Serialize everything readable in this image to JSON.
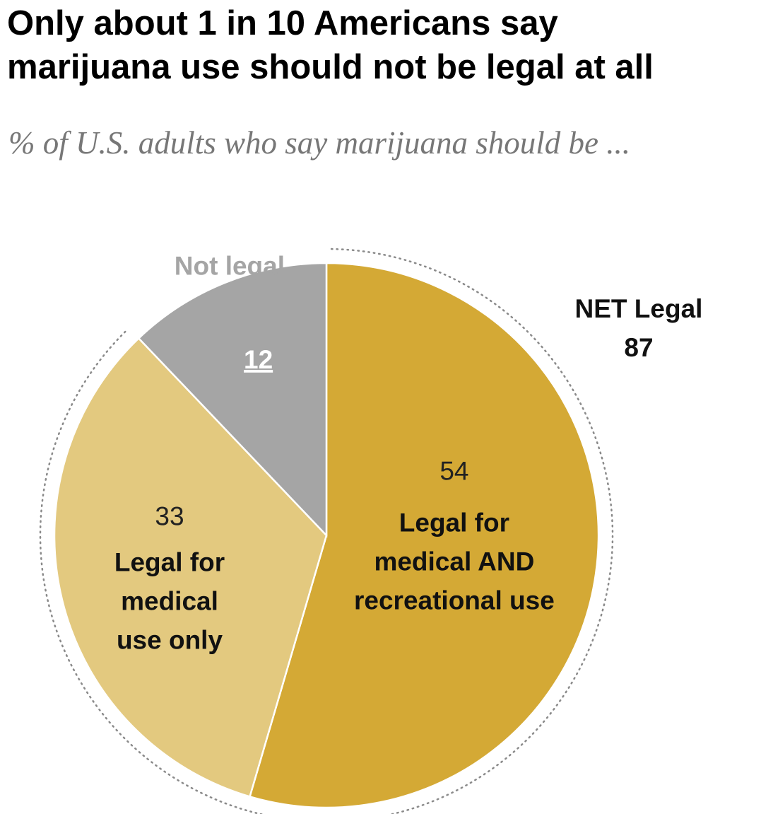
{
  "title_line1": "Only about 1 in 10 Americans say",
  "title_line2": "marijuana use should not be legal at all",
  "subtitle": "% of U.S. adults who say marijuana should be ...",
  "chart_data": {
    "type": "pie",
    "slices": [
      {
        "label_lines": [
          "Legal for",
          "medical AND",
          "recreational use"
        ],
        "value": 54,
        "color": "#D4A935"
      },
      {
        "label_lines": [
          "Legal for",
          "medical",
          "use only"
        ],
        "value": 33,
        "color": "#E3C97F"
      },
      {
        "label_lines": [
          "Not legal"
        ],
        "value": 12,
        "color": "#A5A5A5"
      }
    ],
    "net": {
      "label": "NET Legal",
      "value": 87
    }
  }
}
